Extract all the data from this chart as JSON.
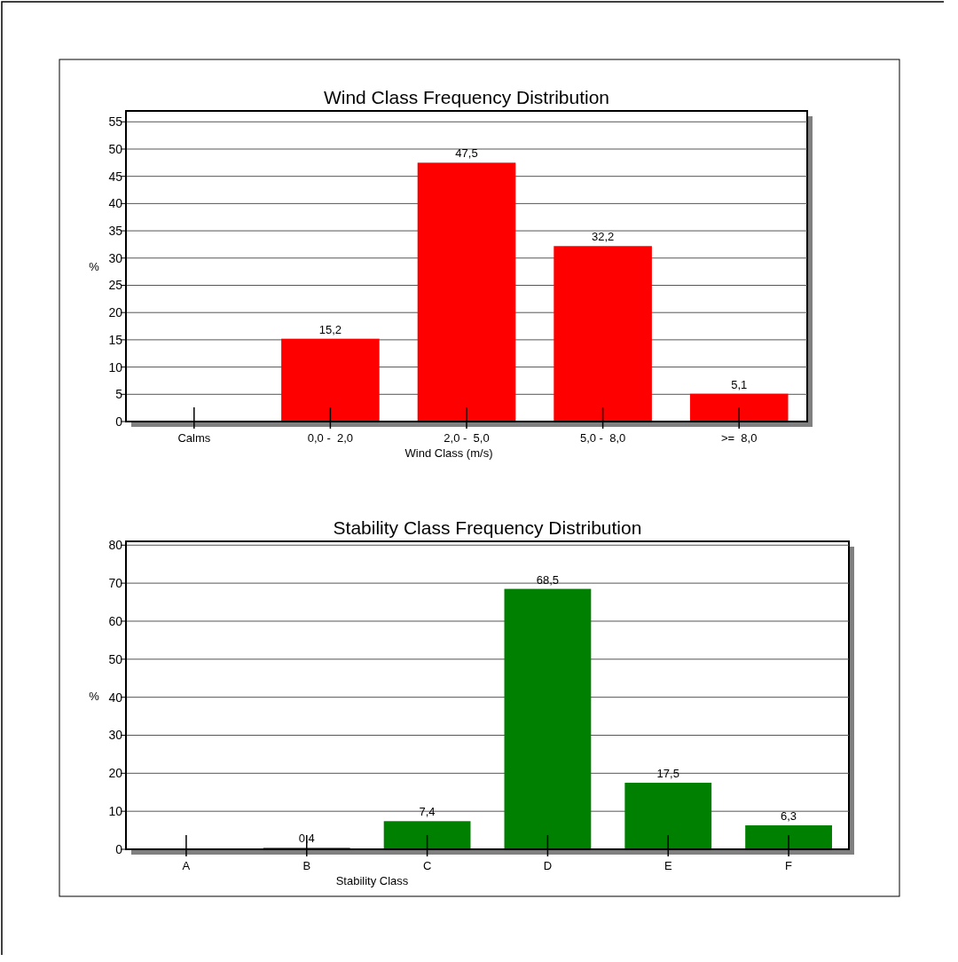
{
  "chart_data": [
    {
      "type": "bar",
      "title": "Wind Class Frequency Distribution",
      "xlabel": "Wind Class (m/s)",
      "ylabel": "%",
      "categories": [
        "Calms",
        "0,0 -  2,0",
        "2,0 -  5,0",
        "5,0 -  8,0",
        ">=  8,0"
      ],
      "values": [
        0,
        15.2,
        47.5,
        32.2,
        5.1
      ],
      "value_labels": [
        null,
        "15,2",
        "47,5",
        "32,2",
        "5,1"
      ],
      "color": "#ff0000",
      "ylim": [
        0,
        57
      ],
      "yticks": [
        0,
        5,
        10,
        15,
        20,
        25,
        30,
        35,
        40,
        45,
        50,
        55
      ],
      "grid": "y"
    },
    {
      "type": "bar",
      "title": "Stability Class Frequency Distribution",
      "xlabel": "Stability Class",
      "ylabel": "%",
      "categories": [
        "A",
        "B",
        "C",
        "D",
        "E",
        "F"
      ],
      "values": [
        0,
        0.4,
        7.4,
        68.5,
        17.5,
        6.3
      ],
      "value_labels": [
        null,
        "0,4",
        "7,4",
        "68,5",
        "17,5",
        "6,3"
      ],
      "color": "#008000",
      "ylim": [
        0,
        81
      ],
      "yticks": [
        0,
        10,
        20,
        30,
        40,
        50,
        60,
        70,
        80
      ],
      "grid": "y"
    }
  ]
}
